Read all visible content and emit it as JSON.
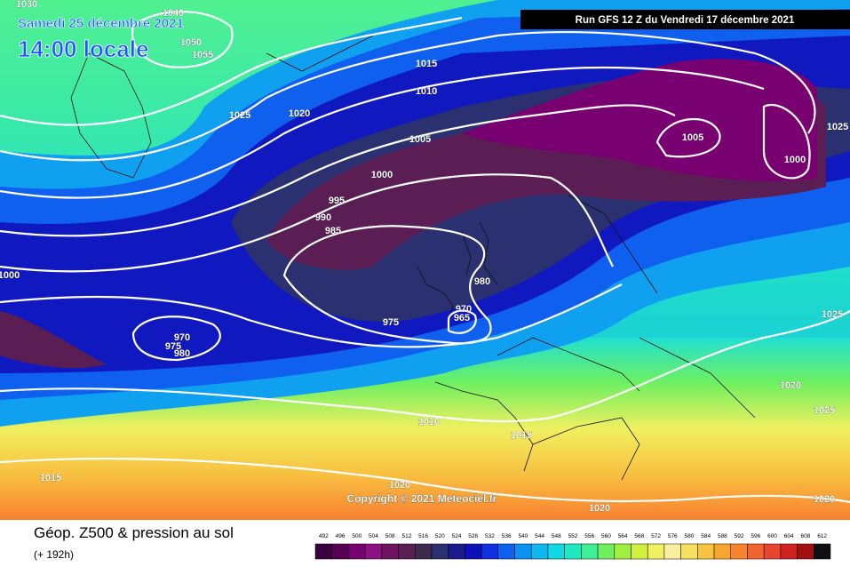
{
  "header": {
    "date": "Samedi 25 décembre 2021",
    "time": "14:00 locale",
    "run": "Run GFS 12 Z du Vendredi 17 décembre 2021"
  },
  "map": {
    "copyright": "Copyright © 2021 Meteociel.fr",
    "isobar_labels": [
      "1030",
      "1040",
      "1050",
      "1055",
      "1025",
      "1020",
      "1015",
      "1010",
      "1005",
      "1000",
      "995",
      "990",
      "985",
      "980",
      "975",
      "970",
      "965",
      "970",
      "975",
      "980",
      "1005",
      "1000",
      "1025",
      "1020",
      "1025",
      "1010",
      "1015",
      "1015",
      "1020",
      "1020",
      "1020",
      "1000",
      "1025"
    ]
  },
  "footer": {
    "title": "Géop. Z500 & pression au sol",
    "lead": "(+ 192h)"
  },
  "colorbar": {
    "values": [
      492,
      496,
      500,
      504,
      508,
      512,
      516,
      520,
      524,
      528,
      532,
      536,
      540,
      544,
      548,
      552,
      556,
      560,
      564,
      568,
      572,
      576,
      580,
      584,
      588,
      592,
      596,
      600,
      604,
      608,
      612
    ],
    "colors": [
      "#3a0040",
      "#560052",
      "#780070",
      "#8c1284",
      "#6e1262",
      "#5a1e54",
      "#3c2a4c",
      "#2a3070",
      "#1a1a8c",
      "#0e10b8",
      "#1030e0",
      "#1060f0",
      "#0c90f2",
      "#10b8f0",
      "#10d8e4",
      "#20e8c0",
      "#40f096",
      "#70f060",
      "#a0ee40",
      "#d0f040",
      "#f0f060",
      "#f8f0a0",
      "#f8e060",
      "#f8c440",
      "#f8a430",
      "#f88430",
      "#f06430",
      "#e84430",
      "#d02020",
      "#a01010",
      "#101010"
    ]
  }
}
